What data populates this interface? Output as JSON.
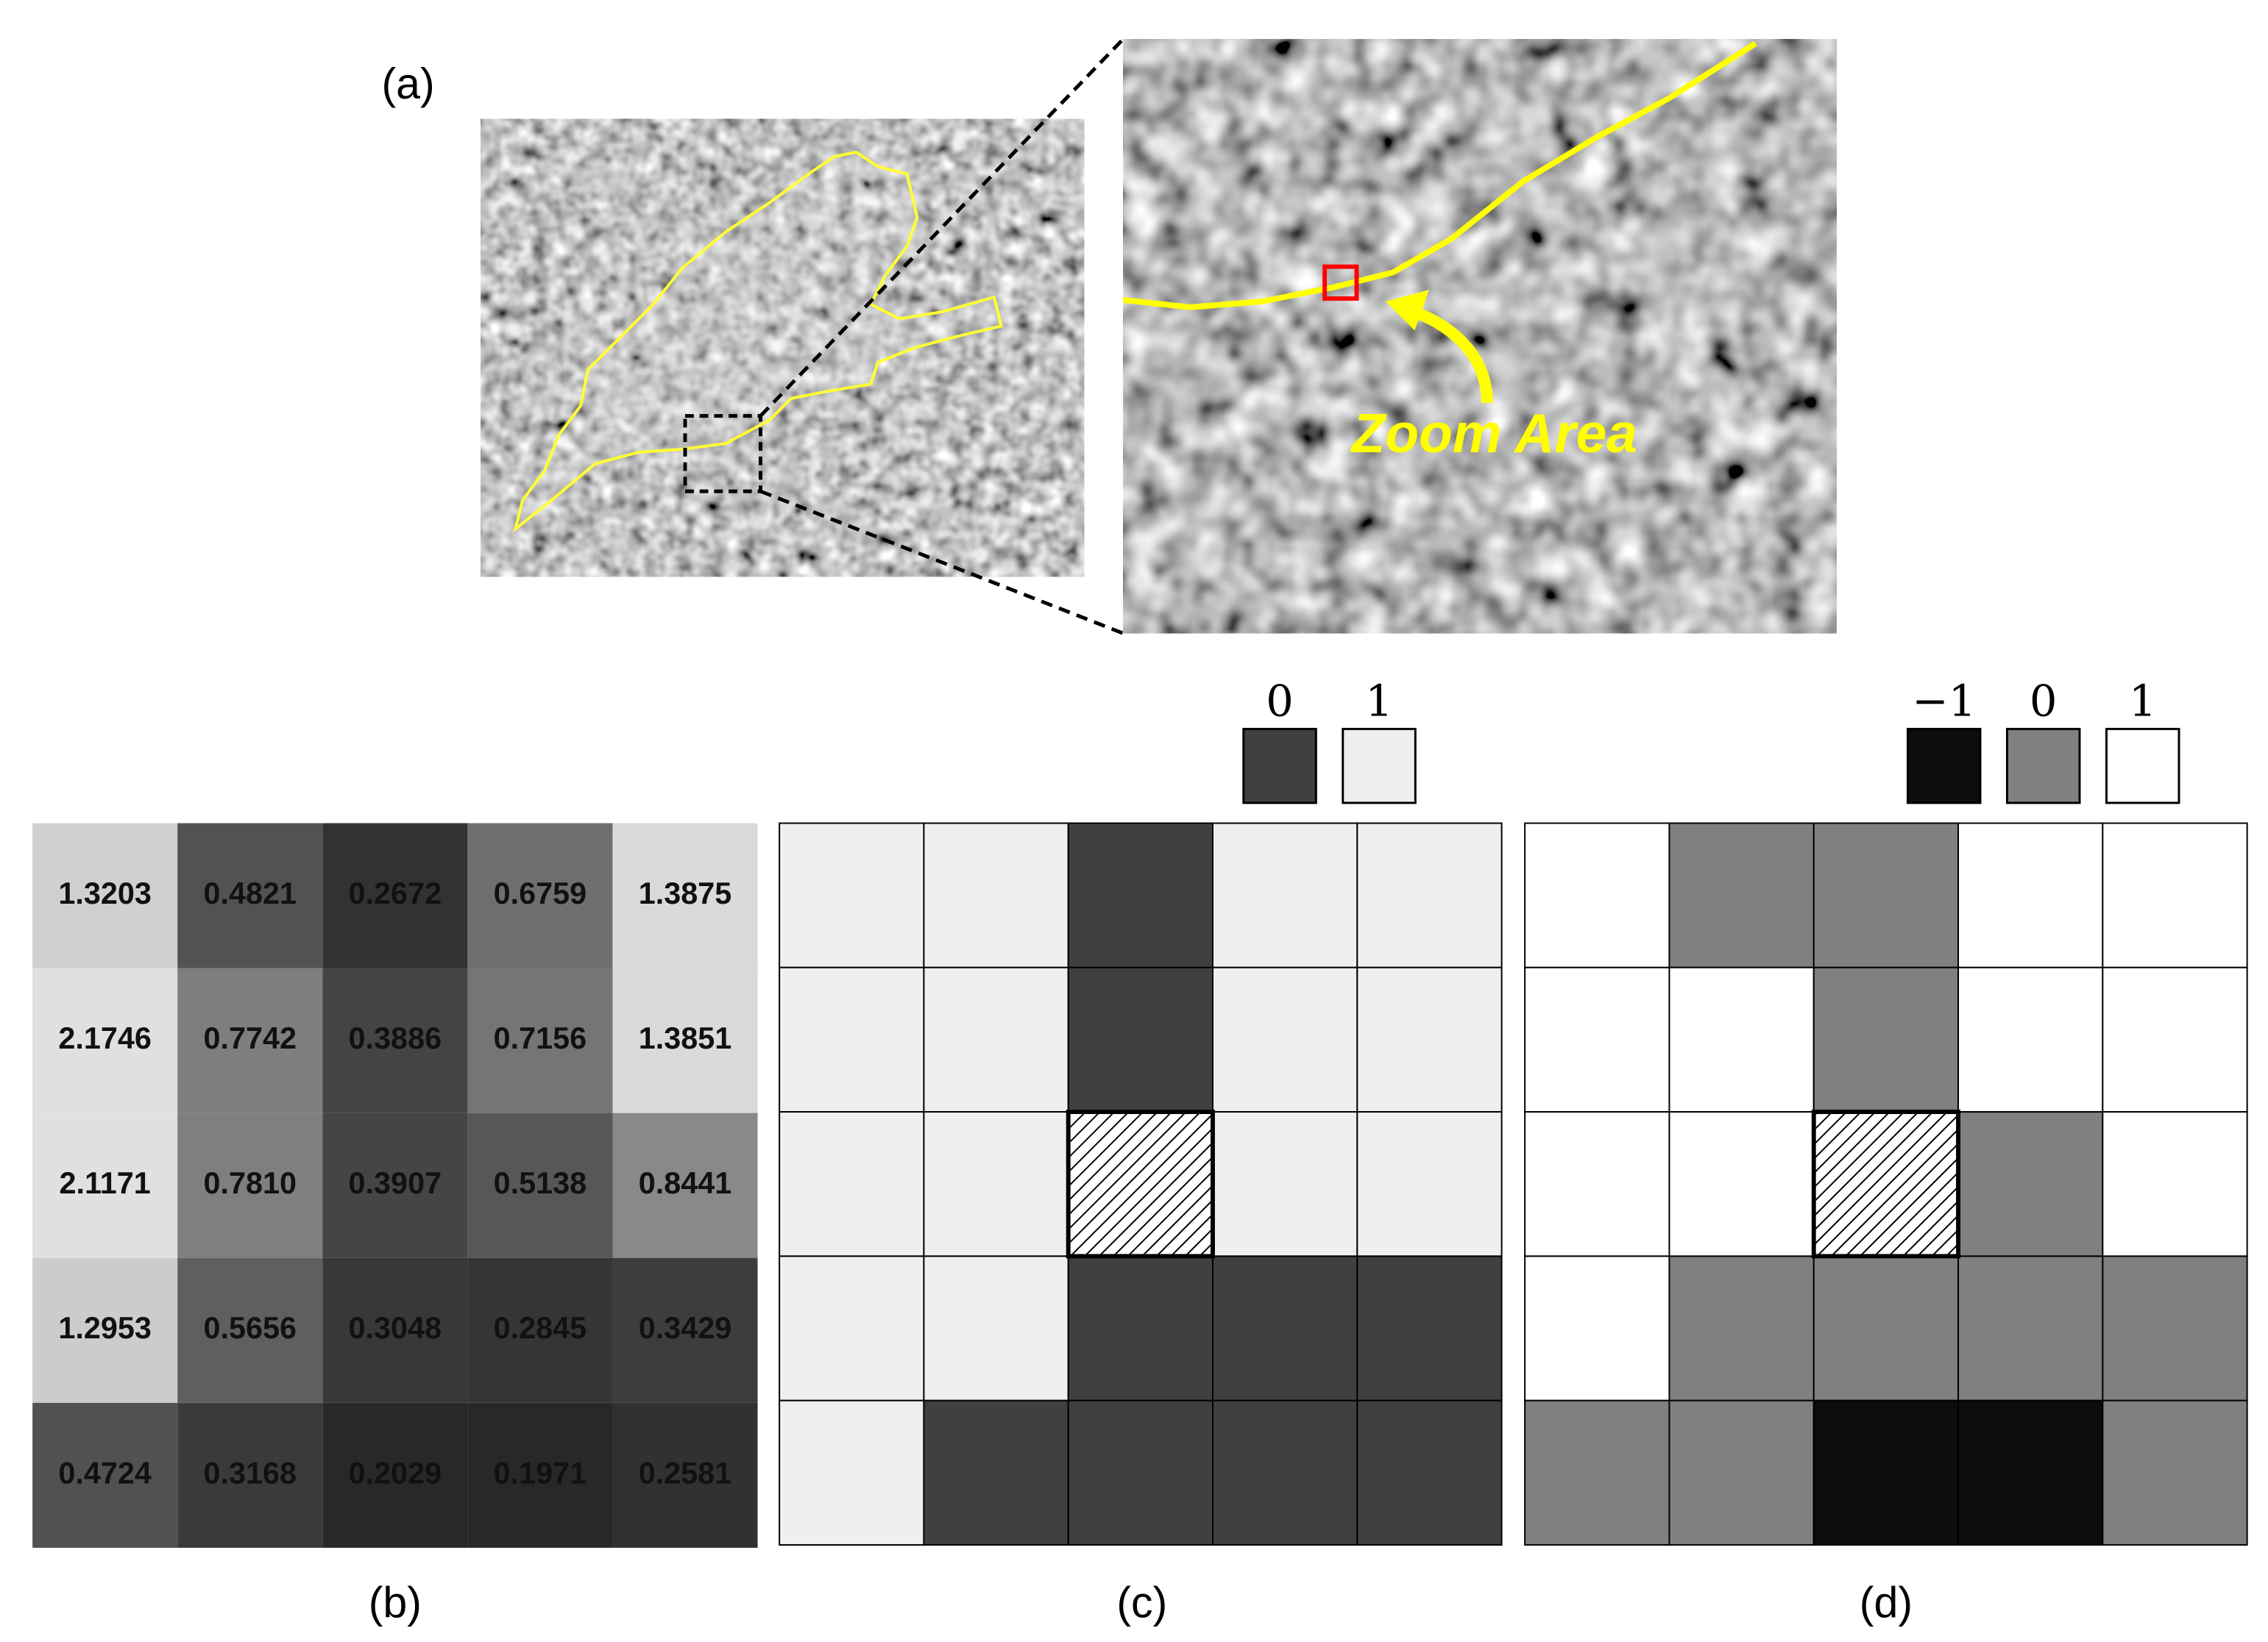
{
  "panels": {
    "a": {
      "label": "(a)",
      "annotation": "Zoom Area"
    },
    "b": {
      "label": "(b)",
      "values": [
        [
          "1.3203",
          "0.4821",
          "0.2672",
          "0.6759",
          "1.3875"
        ],
        [
          "2.1746",
          "0.7742",
          "0.3886",
          "0.7156",
          "1.3851"
        ],
        [
          "2.1171",
          "0.7810",
          "0.3907",
          "0.5138",
          "0.8441"
        ],
        [
          "1.2953",
          "0.5656",
          "0.3048",
          "0.2845",
          "0.3429"
        ],
        [
          "0.4724",
          "0.3168",
          "0.2029",
          "0.1971",
          "0.2581"
        ]
      ]
    },
    "c": {
      "label": "(c)",
      "legend": [
        {
          "value": 0,
          "color": "#404040"
        },
        {
          "value": 1,
          "color": "#efefef"
        }
      ],
      "cells": [
        [
          1,
          1,
          0,
          1,
          1
        ],
        [
          1,
          1,
          0,
          1,
          1
        ],
        [
          1,
          1,
          null,
          1,
          1
        ],
        [
          1,
          1,
          0,
          0,
          0
        ],
        [
          1,
          0,
          0,
          0,
          0
        ]
      ]
    },
    "d": {
      "label": "(d)",
      "legend": [
        {
          "value": {
            "value": -1,
            "label": "−1"
          },
          "color": "#0d0d0d"
        },
        {
          "value": 0,
          "color": "#808080"
        },
        {
          "value": 1,
          "color": "#ffffff"
        }
      ],
      "cells": [
        [
          1,
          0,
          0,
          1,
          1
        ],
        [
          1,
          1,
          0,
          1,
          1
        ],
        [
          1,
          1,
          null,
          0,
          1
        ],
        [
          1,
          0,
          0,
          0,
          0
        ],
        [
          0,
          0,
          -1,
          -1,
          0
        ]
      ]
    }
  }
}
